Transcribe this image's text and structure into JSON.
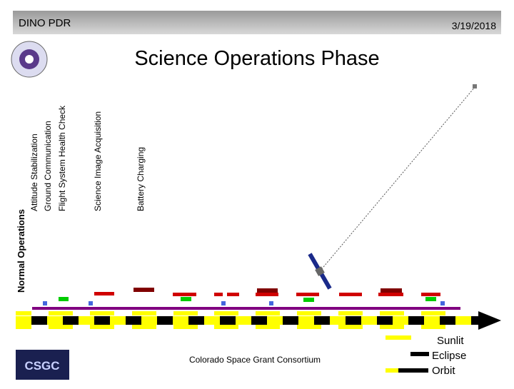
{
  "header": {
    "title": "DINO PDR",
    "date": "3/19/2018"
  },
  "title": "Science Operations Phase",
  "activities": {
    "group": "Normal Operations",
    "items": [
      "Attitude Stabilization",
      "Ground Communication",
      "Flight System Health Check",
      "Science Image Acquisition",
      "Battery Charging"
    ]
  },
  "footer": {
    "organization": "Colorado Space Grant Consortium",
    "logo": "CSGC"
  },
  "legend": [
    "Sunlit",
    "Eclipse",
    "Orbit"
  ]
}
